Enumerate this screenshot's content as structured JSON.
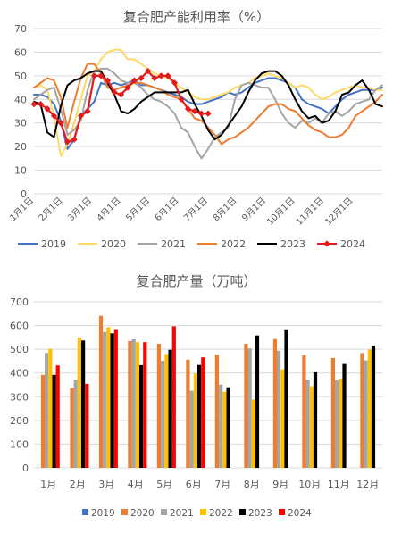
{
  "chart_data": [
    {
      "type": "line",
      "title": "复合肥产能利用率（%）",
      "xlabel": "",
      "ylabel": "",
      "ylim": [
        0,
        70
      ],
      "yticks": [
        "0",
        "10",
        "20",
        "30",
        "40",
        "50",
        "60",
        "70"
      ],
      "xtick_labels": [
        "1月1日",
        "2月1日",
        "3月1日",
        "4月1日",
        "5月1日",
        "6月1日",
        "7月1日",
        "8月1日",
        "9月1日",
        "10月1日",
        "11月1日",
        "12月1日"
      ],
      "x_domain_weeks": [
        0,
        52
      ],
      "grid": "horizontal",
      "legend_position": "bottom",
      "series": [
        {
          "name": "2019",
          "color": "#4472C4",
          "x": [
            0,
            1,
            2,
            3,
            4,
            5,
            6,
            7,
            8,
            9,
            10,
            11,
            12,
            13,
            14,
            15,
            16,
            17,
            18,
            19,
            20,
            21,
            22,
            23,
            24,
            25,
            26,
            27,
            28,
            29,
            30,
            31,
            32,
            33,
            34,
            35,
            36,
            37,
            38,
            39,
            40,
            41,
            42,
            43,
            44,
            45,
            46,
            47,
            48,
            49,
            50,
            51,
            52
          ],
          "values": [
            42,
            42,
            41,
            38,
            31,
            19,
            23,
            33,
            36,
            39,
            47,
            46,
            47,
            46,
            47,
            48,
            46,
            46,
            45,
            44,
            43,
            42,
            41,
            39,
            38,
            38,
            39,
            40,
            41,
            43,
            42,
            43,
            45,
            47,
            48,
            49,
            49,
            48,
            47,
            45,
            40,
            38,
            37,
            36,
            34,
            37,
            40,
            42,
            43,
            44,
            44,
            44,
            45
          ]
        },
        {
          "name": "2020",
          "color": "#FFD966",
          "x": [
            0,
            1,
            2,
            3,
            4,
            5,
            6,
            7,
            8,
            9,
            10,
            11,
            12,
            13,
            14,
            15,
            16,
            17,
            18,
            19,
            20,
            21,
            22,
            23,
            24,
            25,
            26,
            27,
            28,
            29,
            30,
            31,
            32,
            33,
            34,
            35,
            36,
            37,
            38,
            39,
            40,
            41,
            42,
            43,
            44,
            45,
            46,
            47,
            48,
            49,
            50,
            51,
            52
          ],
          "values": [
            45,
            46,
            44,
            33,
            16,
            21,
            30,
            40,
            50,
            52,
            57,
            60,
            61,
            61,
            57,
            57,
            55,
            53,
            51,
            50,
            49,
            47,
            45,
            43,
            41,
            40,
            40,
            41,
            42,
            43,
            45,
            46,
            47,
            49,
            50,
            51,
            50,
            49,
            47,
            45,
            46,
            45,
            42,
            40,
            41,
            43,
            44,
            45,
            46,
            45,
            45,
            44,
            44
          ]
        },
        {
          "name": "2021",
          "color": "#A5A5A5",
          "x": [
            0,
            1,
            2,
            3,
            4,
            5,
            6,
            7,
            8,
            9,
            10,
            11,
            12,
            13,
            14,
            15,
            16,
            17,
            18,
            19,
            20,
            21,
            22,
            23,
            24,
            25,
            26,
            27,
            28,
            29,
            30,
            31,
            32,
            33,
            34,
            35,
            36,
            37,
            38,
            39,
            40,
            41,
            42,
            43,
            44,
            45,
            46,
            47,
            48,
            49,
            50,
            51,
            52
          ],
          "values": [
            40,
            42,
            44,
            45,
            36,
            25,
            27,
            31,
            44,
            52,
            53,
            53,
            51,
            48,
            47,
            47,
            45,
            42,
            40,
            39,
            37,
            34,
            28,
            26,
            20,
            15,
            19,
            24,
            26,
            28,
            40,
            46,
            47,
            46,
            45,
            45,
            40,
            34,
            30,
            28,
            31,
            30,
            32,
            30,
            34,
            35,
            33,
            35,
            38,
            39,
            40,
            44,
            46
          ]
        },
        {
          "name": "2022",
          "color": "#ED7D31",
          "x": [
            0,
            1,
            2,
            3,
            4,
            5,
            6,
            7,
            8,
            9,
            10,
            11,
            12,
            13,
            14,
            15,
            16,
            17,
            18,
            19,
            20,
            21,
            22,
            23,
            24,
            25,
            26,
            27,
            28,
            29,
            30,
            31,
            32,
            33,
            34,
            35,
            36,
            37,
            38,
            39,
            40,
            41,
            42,
            43,
            44,
            45,
            46,
            47,
            48,
            49,
            50,
            51,
            52
          ],
          "values": [
            45,
            47,
            49,
            48,
            41,
            28,
            39,
            49,
            55,
            55,
            51,
            45,
            44,
            45,
            46,
            47,
            47,
            46,
            45,
            44,
            42,
            41,
            40,
            36,
            32,
            31,
            28,
            25,
            21,
            23,
            24,
            26,
            28,
            31,
            34,
            37,
            38,
            38,
            36,
            35,
            32,
            29,
            27,
            26,
            24,
            24,
            25,
            28,
            33,
            35,
            37,
            39,
            42
          ]
        },
        {
          "name": "2023",
          "color": "#000000",
          "x": [
            0,
            1,
            2,
            3,
            4,
            5,
            6,
            7,
            8,
            9,
            10,
            11,
            12,
            13,
            14,
            15,
            16,
            17,
            18,
            19,
            20,
            21,
            22,
            23,
            24,
            25,
            26,
            27,
            28,
            29,
            30,
            31,
            32,
            33,
            34,
            35,
            36,
            37,
            38,
            39,
            40,
            41,
            42,
            43,
            44,
            45,
            46,
            47,
            48,
            49,
            50,
            51,
            52
          ],
          "values": [
            39,
            38,
            26,
            24,
            37,
            46,
            48,
            49,
            51,
            52,
            52,
            47,
            42,
            35,
            34,
            36,
            39,
            41,
            43,
            43,
            43,
            43,
            43,
            44,
            38,
            33,
            27,
            23,
            25,
            29,
            33,
            37,
            43,
            48,
            51,
            52,
            52,
            50,
            46,
            40,
            35,
            32,
            33,
            30,
            31,
            35,
            42,
            43,
            46,
            48,
            44,
            38,
            37
          ]
        },
        {
          "name": "2024",
          "color": "#E31A1C",
          "marker": "diamond",
          "x": [
            0,
            1,
            2,
            3,
            4,
            5,
            6,
            7,
            8,
            9,
            10,
            11,
            12,
            13,
            14,
            15,
            16,
            17,
            18,
            19,
            20,
            21,
            22,
            23,
            24,
            25,
            26
          ],
          "values": [
            38,
            38,
            36,
            33,
            30,
            22,
            23,
            33,
            35,
            50,
            50,
            48,
            43,
            42,
            45,
            48,
            49,
            52,
            49,
            50,
            50,
            47,
            40,
            36,
            35,
            34,
            34
          ]
        }
      ]
    },
    {
      "type": "bar",
      "title": "复合肥产量（万吨）",
      "xlabel": "",
      "ylabel": "",
      "ylim": [
        0,
        700
      ],
      "yticks": [
        "0",
        "100",
        "200",
        "300",
        "400",
        "500",
        "600",
        "700"
      ],
      "categories": [
        "1月",
        "2月",
        "3月",
        "4月",
        "5月",
        "6月",
        "7月",
        "8月",
        "9月",
        "10月",
        "11月",
        "12月"
      ],
      "grid": "horizontal",
      "legend_position": "bottom",
      "series": [
        {
          "name": "2019",
          "color": "#4472C4",
          "values": [
            null,
            null,
            null,
            null,
            null,
            null,
            null,
            null,
            null,
            null,
            null,
            null
          ]
        },
        {
          "name": "2020",
          "color": "#ED7D31",
          "values": [
            392,
            336,
            641,
            535,
            523,
            456,
            477,
            523,
            543,
            475,
            463,
            484
          ]
        },
        {
          "name": "2021",
          "color": "#A5A5A5",
          "values": [
            485,
            371,
            573,
            542,
            452,
            325,
            351,
            504,
            494,
            372,
            370,
            453
          ]
        },
        {
          "name": "2022",
          "color": "#FFC000",
          "values": [
            502,
            550,
            593,
            530,
            480,
            398,
            321,
            288,
            415,
            344,
            377,
            499
          ]
        },
        {
          "name": "2023",
          "color": "#000000",
          "values": [
            392,
            537,
            567,
            433,
            498,
            434,
            340,
            558,
            584,
            403,
            438,
            516
          ]
        },
        {
          "name": "2024",
          "color": "#FF0000",
          "values": [
            432,
            354,
            585,
            530,
            597,
            466,
            null,
            null,
            null,
            null,
            null,
            null
          ]
        }
      ]
    }
  ]
}
